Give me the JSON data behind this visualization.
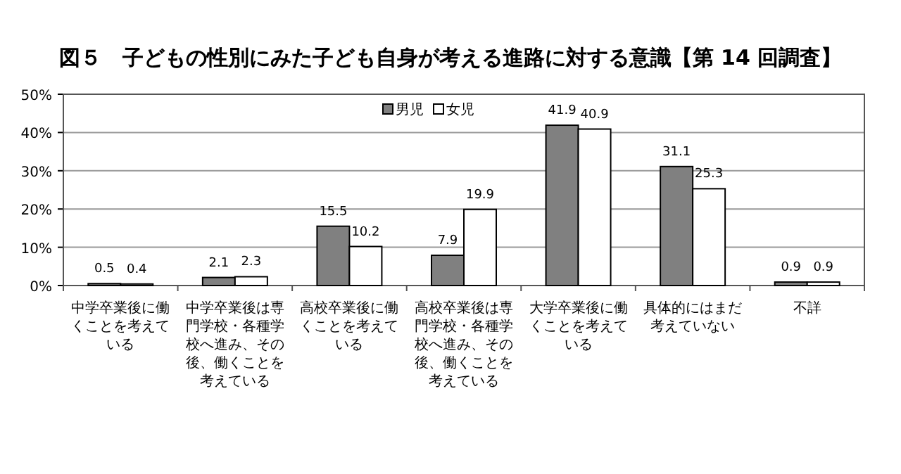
{
  "chart_data": {
    "type": "bar",
    "title": "図５　子どもの性別にみた子ども自身が考える進路に対する意識【第 14 回調査】",
    "categories": [
      "中学卒業後に働くことを考えている",
      "中学卒業後は専門学校・各種学校へ進み、その後、働くことを考えている",
      "高校卒業後に働くことを考えている",
      "高校卒業後は専門学校・各種学校へ進み、その後、働くことを考えている",
      "大学卒業後に働くことを考えている",
      "具体的にはまだ考えていない",
      "不詳"
    ],
    "series": [
      {
        "name": "男児",
        "color": "#808080",
        "values": [
          0.5,
          2.1,
          15.5,
          7.9,
          41.9,
          31.1,
          0.9
        ]
      },
      {
        "name": "女児",
        "color": "#ffffff",
        "values": [
          0.4,
          2.3,
          10.2,
          19.9,
          40.9,
          25.3,
          0.9
        ]
      }
    ],
    "ylim": [
      0,
      50
    ],
    "yticks": [
      {
        "value": 0,
        "label": "0%"
      },
      {
        "value": 10,
        "label": "10%"
      },
      {
        "value": 20,
        "label": "20%"
      },
      {
        "value": 30,
        "label": "30%"
      },
      {
        "value": 40,
        "label": "40%"
      },
      {
        "value": 50,
        "label": "50%"
      }
    ],
    "grid": "y",
    "legend": "top",
    "data_labels": true
  }
}
